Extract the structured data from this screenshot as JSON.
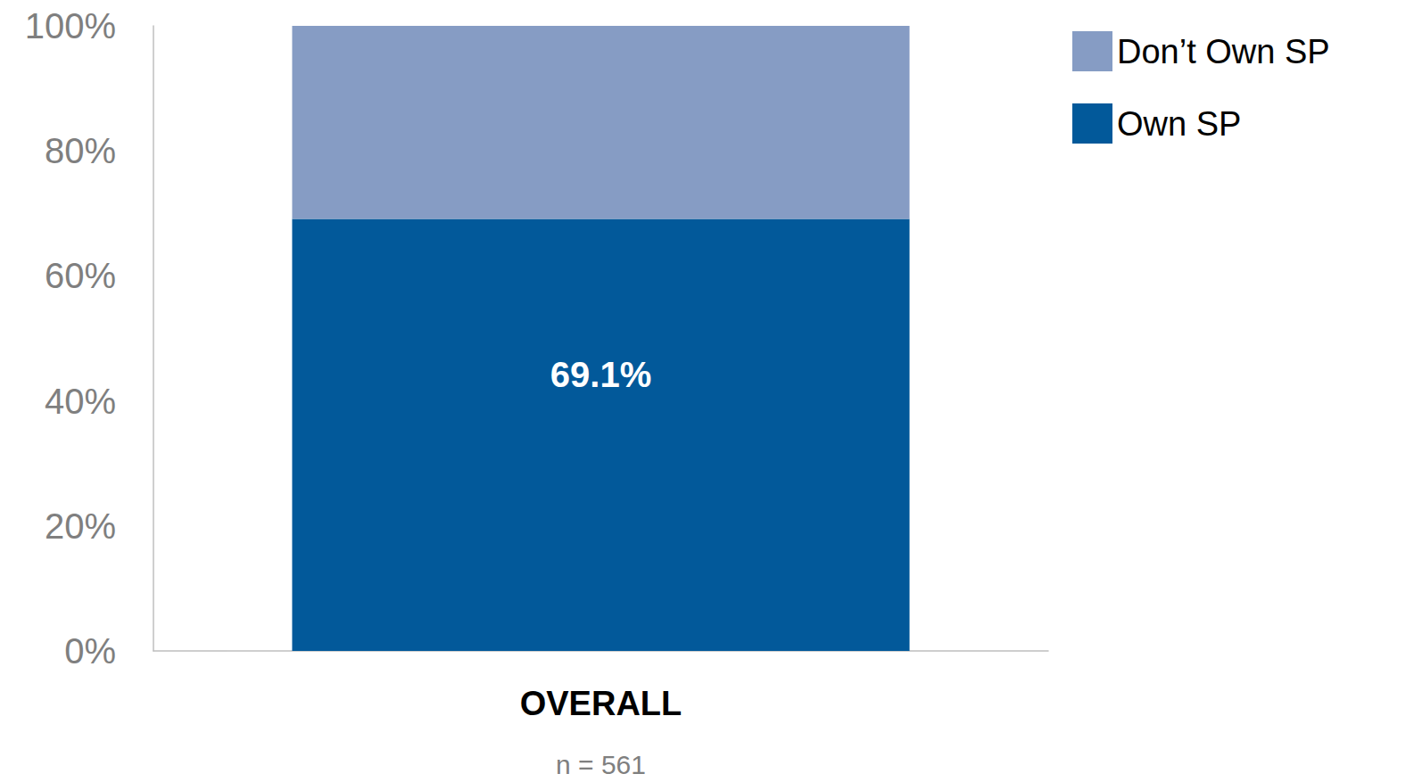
{
  "chart_data": {
    "type": "bar",
    "stacked": true,
    "grid": false,
    "legend": "top-right",
    "categories": [
      "OVERALL"
    ],
    "xlabel": "n = 561",
    "ylim": [
      0,
      100
    ],
    "yticks": [
      {
        "value": 0,
        "label": "0%"
      },
      {
        "value": 20,
        "label": "20%"
      },
      {
        "value": 40,
        "label": "40%"
      },
      {
        "value": 60,
        "label": "60%"
      },
      {
        "value": 80,
        "label": "80%"
      },
      {
        "value": 100,
        "label": "100%"
      }
    ],
    "series": [
      {
        "name": "Own SP",
        "color": "#02599a",
        "values": [
          69.1
        ],
        "data_labels": true,
        "value_labels": [
          "69.1%"
        ]
      },
      {
        "name": "Don’t Own SP",
        "color": "#869cc4",
        "values": [
          30.9
        ],
        "data_labels": false
      }
    ]
  }
}
